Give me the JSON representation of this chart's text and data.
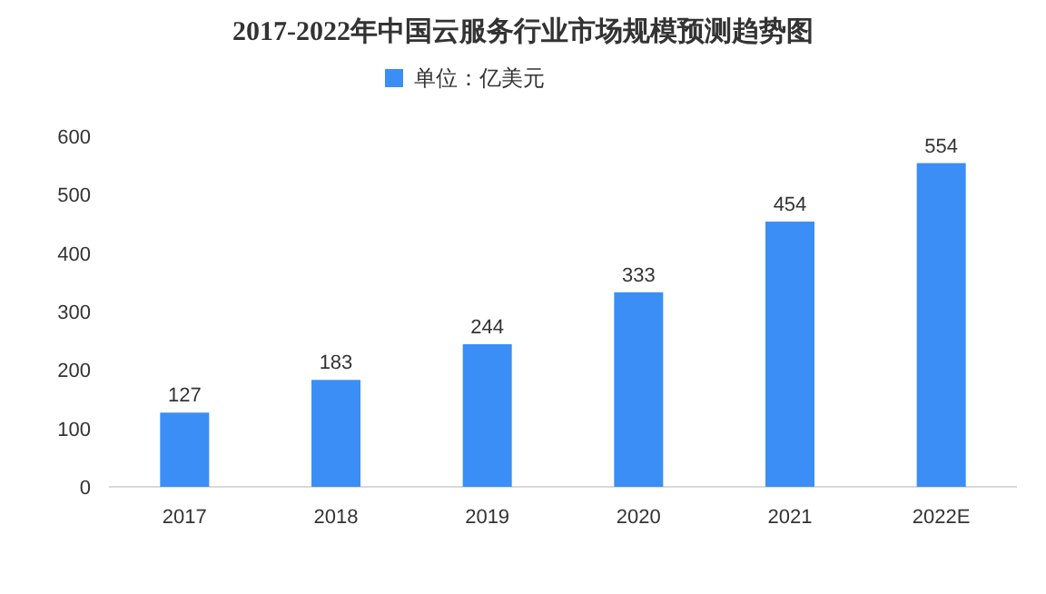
{
  "chart_data": {
    "type": "bar",
    "title": "2017-2022年中国云服务行业市场规模预测趋势图",
    "categories": [
      "2017",
      "2018",
      "2019",
      "2020",
      "2021",
      "2022E"
    ],
    "series": [
      {
        "name": "单位：亿美元",
        "color": "#3a8ef6",
        "values": [
          127,
          183,
          244,
          333,
          454,
          554
        ]
      }
    ],
    "ylim": [
      0,
      600
    ],
    "yticks": [
      0,
      100,
      200,
      300,
      400,
      500,
      600
    ],
    "data_labels": true,
    "legend": "top",
    "grid": false
  }
}
